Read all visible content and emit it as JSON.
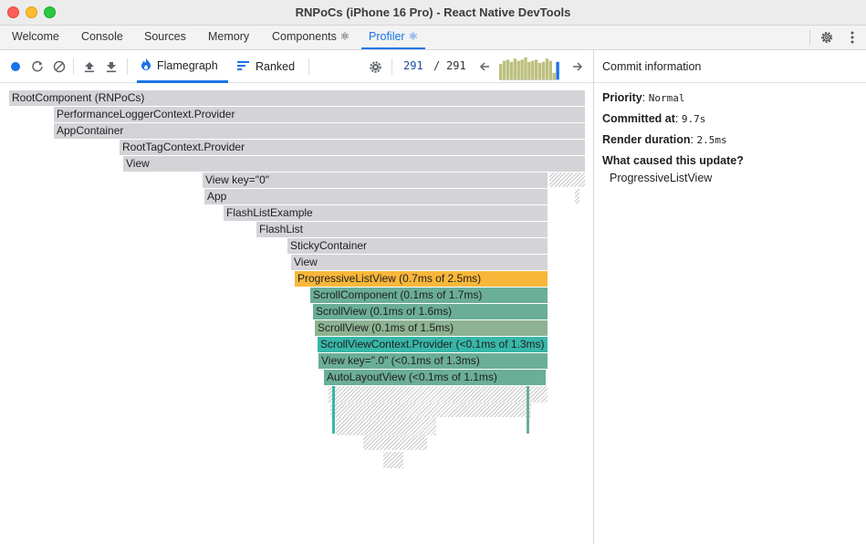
{
  "window": {
    "title": "RNPoCs (iPhone 16 Pro) - React Native DevTools"
  },
  "tabs": [
    {
      "label": "Welcome"
    },
    {
      "label": "Console"
    },
    {
      "label": "Sources"
    },
    {
      "label": "Memory"
    },
    {
      "label": "Components ⚛"
    },
    {
      "label": "Profiler ⚛",
      "active": true
    }
  ],
  "toolbar_icons": [
    "settings-gear-icon",
    "more-vertical-icon"
  ],
  "profiler": {
    "modes": [
      {
        "label": "Flamegraph",
        "icon": "flame-icon",
        "active": true
      },
      {
        "label": "Ranked",
        "icon": "ranked-list-icon"
      }
    ],
    "commit_current": "291",
    "commit_separator": "/",
    "commit_total": "291",
    "commit_chart_levels": [
      0.7,
      0.85,
      0.9,
      0.8,
      0.95,
      0.85,
      0.9,
      1.0,
      0.8,
      0.85,
      0.9,
      0.75,
      0.8,
      0.95,
      0.85,
      0.3,
      0.8
    ],
    "colors": {
      "accent": "#1a73e8",
      "selected": "#f9b73a",
      "teal": "#37b7a8",
      "green": "#6bae98",
      "sage": "#8db392",
      "gray": "#d4d4d8",
      "commit_bar": "#bcc07e"
    }
  },
  "commit_info": {
    "header": "Commit information",
    "priority_label": "Priority",
    "priority_value": "Normal",
    "committed_label": "Committed at",
    "committed_value": "9.7s",
    "render_label": "Render duration",
    "render_value": "2.5ms",
    "cause_question": "What caused this update?",
    "cause_value": "ProgressiveListView"
  },
  "flamegraph": [
    {
      "label": "RootComponent (RNPoCs)",
      "kind": "gray"
    },
    {
      "label": "PerformanceLoggerContext.Provider",
      "kind": "gray"
    },
    {
      "label": "AppContainer",
      "kind": "gray"
    },
    {
      "label": "RootTagContext.Provider",
      "kind": "gray"
    },
    {
      "label": "View",
      "kind": "gray"
    },
    {
      "label": "View key=\"0\"",
      "kind": "gray"
    },
    {
      "label": "App",
      "kind": "gray"
    },
    {
      "label": "FlashListExample",
      "kind": "gray"
    },
    {
      "label": "FlashList",
      "kind": "gray"
    },
    {
      "label": "StickyContainer",
      "kind": "gray"
    },
    {
      "label": "View",
      "kind": "gray"
    },
    {
      "label": "ProgressiveListView (0.7ms of 2.5ms)",
      "kind": "selected"
    },
    {
      "label": "ScrollComponent (0.1ms of 1.7ms)",
      "kind": "green"
    },
    {
      "label": "ScrollView (0.1ms of 1.6ms)",
      "kind": "green"
    },
    {
      "label": "ScrollView (0.1ms of 1.5ms)",
      "kind": "sage"
    },
    {
      "label": "ScrollViewContext.Provider (<0.1ms of 1.3ms)",
      "kind": "teal"
    },
    {
      "label": "View key=\".0\" (<0.1ms of 1.3ms)",
      "kind": "green"
    },
    {
      "label": "AutoLayoutView (<0.1ms of 1.1ms)",
      "kind": "green"
    }
  ]
}
